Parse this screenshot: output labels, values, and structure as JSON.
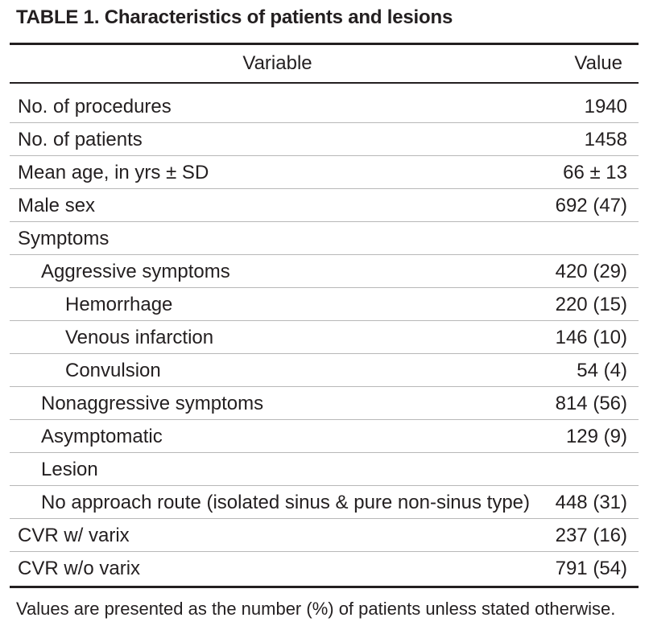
{
  "table": {
    "title": "TABLE 1. Characteristics of patients and lesions",
    "header": {
      "variable": "Variable",
      "value": "Value"
    },
    "rows": [
      {
        "variable": "No. of procedures",
        "value": "1940",
        "level": 0
      },
      {
        "variable": "No. of patients",
        "value": "1458",
        "level": 0
      },
      {
        "variable": "Mean age, in yrs ± SD",
        "value": "66 ± 13",
        "level": 0
      },
      {
        "variable": "Male sex",
        "value": "692 (47)",
        "level": 0
      },
      {
        "variable": "Symptoms",
        "value": "",
        "level": 0
      },
      {
        "variable": "Aggressive symptoms",
        "value": "420 (29)",
        "level": 1
      },
      {
        "variable": "Hemorrhage",
        "value": "220 (15)",
        "level": 2
      },
      {
        "variable": "Venous infarction",
        "value": "146 (10)",
        "level": 2
      },
      {
        "variable": "Convulsion",
        "value": "54 (4)",
        "level": 2
      },
      {
        "variable": "Nonaggressive symptoms",
        "value": "814 (56)",
        "level": 1
      },
      {
        "variable": "Asymptomatic",
        "value": "129 (9)",
        "level": 1
      },
      {
        "variable": "Lesion",
        "value": "",
        "level": 1
      },
      {
        "variable": "No approach route (isolated sinus & pure non-sinus type)",
        "value": "448 (31)",
        "level": 1
      },
      {
        "variable": "CVR w/ varix",
        "value": "237 (16)",
        "level": 0
      },
      {
        "variable": "CVR w/o varix",
        "value": "791 (54)",
        "level": 0
      }
    ],
    "footnote": "Values are presented as the number (%) of patients unless stated otherwise."
  }
}
